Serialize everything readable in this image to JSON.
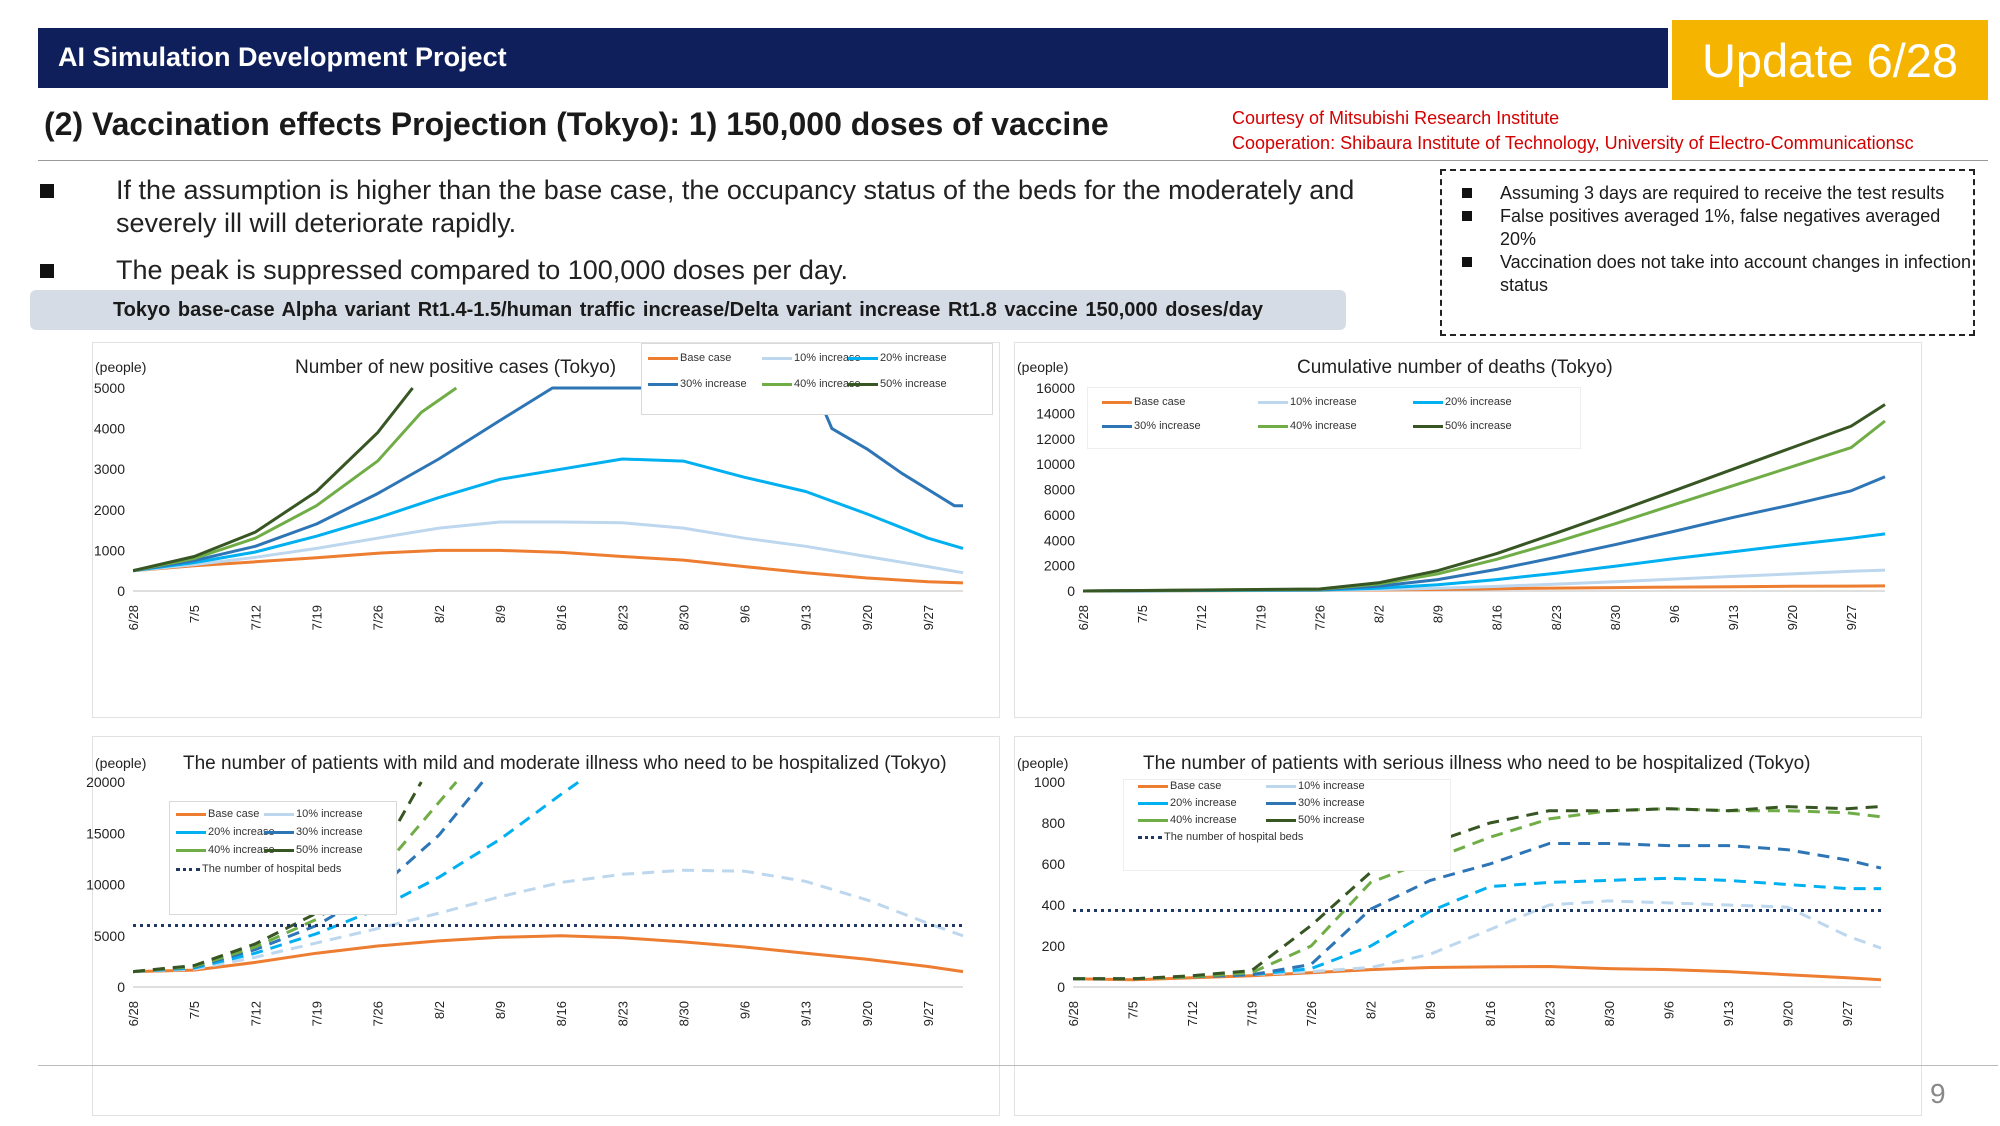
{
  "header": {
    "title": "AI Simulation Development Project",
    "badge": "Update 6/28"
  },
  "subtitle": "(2) Vaccination effects Projection (Tokyo): 1) 150,000 doses of vaccine",
  "credit": {
    "line1": "Courtesy of Mitsubishi Research Institute",
    "line2": "Cooperation: Shibaura Institute of Technology, University of Electro-Communicationsc"
  },
  "bullets": [
    "If the assumption is higher than the base case, the occupancy status of the beds for the moderately and severely ill will deteriorate rapidly.",
    "The peak is suppressed compared to 100,000 doses per day."
  ],
  "notes": [
    "Assuming 3 days are required to receive the test results",
    "False positives averaged 1%, false negatives averaged 20%",
    "Vaccination does not take into account changes in infection status"
  ],
  "scenario": "Tokyo base-case  Alpha variant Rt1.4-1.5/human traffic increase/Delta variant increase  Rt1.8 vaccine 150,000 doses/day",
  "page_number": "9",
  "colors": {
    "header": "#0f1f5c",
    "badge": "#f5b400",
    "credit": "#d40000",
    "base": "#ed7d31",
    "inc10": "#bdd7ee",
    "inc20": "#00b0f0",
    "inc30": "#2e75b6",
    "inc40": "#70ad47",
    "inc50": "#375623",
    "beds": "#1f3864"
  },
  "chart_data": [
    {
      "type": "line",
      "title": "Number of new positive cases (Tokyo)",
      "ylabel": "(people)",
      "ylim": [
        0,
        5000
      ],
      "yticks": [
        "0",
        "1000",
        "2000",
        "3000",
        "4000",
        "5000"
      ],
      "x_ticks": [
        "6/28",
        "7/5",
        "7/12",
        "7/19",
        "7/26",
        "8/2",
        "8/9",
        "8/16",
        "8/23",
        "8/30",
        "9/6",
        "9/13",
        "9/20",
        "9/27"
      ],
      "x_days": [
        0,
        7,
        14,
        21,
        28,
        35,
        42,
        49,
        56,
        63,
        70,
        77,
        84,
        91
      ],
      "legend": [
        "Base case",
        "10% increase",
        "20% increase",
        "30% increase",
        "40% increase",
        "50% increase"
      ],
      "series": [
        {
          "name": "Base case",
          "x": [
            0,
            7,
            14,
            21,
            28,
            35,
            42,
            49,
            56,
            63,
            70,
            77,
            84,
            91,
            95
          ],
          "values": [
            500,
            620,
            720,
            820,
            930,
            1000,
            1000,
            950,
            850,
            760,
            600,
            450,
            320,
            230,
            200
          ]
        },
        {
          "name": "10% increase",
          "x": [
            0,
            7,
            14,
            21,
            28,
            35,
            42,
            49,
            56,
            63,
            70,
            77,
            84,
            91,
            95
          ],
          "values": [
            500,
            650,
            830,
            1050,
            1300,
            1550,
            1700,
            1700,
            1680,
            1550,
            1300,
            1100,
            850,
            600,
            450
          ]
        },
        {
          "name": "20% increase",
          "x": [
            0,
            7,
            14,
            21,
            28,
            35,
            42,
            49,
            56,
            63,
            70,
            77,
            84,
            91,
            95
          ],
          "values": [
            500,
            700,
            960,
            1350,
            1800,
            2300,
            2750,
            3000,
            3250,
            3200,
            2800,
            2450,
            1900,
            1300,
            1050
          ]
        },
        {
          "name": "30% increase",
          "x": [
            0,
            7,
            14,
            21,
            28,
            35,
            42,
            48,
            78,
            80,
            84,
            88,
            91,
            94,
            95
          ],
          "values": [
            500,
            750,
            1100,
            1650,
            2400,
            3250,
            4200,
            5000,
            5000,
            4000,
            3500,
            2900,
            2500,
            2100,
            2100
          ]
        },
        {
          "name": "40% increase",
          "x": [
            0,
            7,
            14,
            21,
            28,
            33,
            37
          ],
          "values": [
            500,
            800,
            1300,
            2100,
            3200,
            4400,
            5000
          ]
        },
        {
          "name": "50% increase",
          "x": [
            0,
            7,
            14,
            21,
            28,
            32
          ],
          "values": [
            500,
            850,
            1450,
            2450,
            3900,
            5000
          ]
        }
      ]
    },
    {
      "type": "line",
      "title": "Cumulative number of deaths (Tokyo)",
      "ylabel": "(people)",
      "ylim": [
        0,
        16000
      ],
      "yticks": [
        "0",
        "2000",
        "4000",
        "6000",
        "8000",
        "10000",
        "12000",
        "14000",
        "16000"
      ],
      "x_ticks": [
        "6/28",
        "7/5",
        "7/12",
        "7/19",
        "7/26",
        "8/2",
        "8/9",
        "8/16",
        "8/23",
        "8/30",
        "9/6",
        "9/13",
        "9/20",
        "9/27"
      ],
      "x_days": [
        0,
        7,
        14,
        21,
        28,
        35,
        42,
        49,
        56,
        63,
        70,
        77,
        84,
        91
      ],
      "legend": [
        "Base case",
        "10% increase",
        "20% increase",
        "30% increase",
        "40% increase",
        "50% increase"
      ],
      "series": [
        {
          "name": "Base case",
          "x": [
            0,
            28,
            35,
            42,
            49,
            56,
            63,
            70,
            77,
            84,
            91,
            95
          ],
          "values": [
            0,
            50,
            80,
            120,
            180,
            230,
            270,
            310,
            340,
            370,
            390,
            400
          ]
        },
        {
          "name": "10% increase",
          "x": [
            0,
            28,
            35,
            42,
            49,
            56,
            63,
            70,
            77,
            84,
            91,
            95
          ],
          "values": [
            0,
            60,
            120,
            220,
            360,
            540,
            730,
            940,
            1150,
            1350,
            1550,
            1650
          ]
        },
        {
          "name": "20% increase",
          "x": [
            0,
            28,
            35,
            42,
            49,
            56,
            63,
            70,
            77,
            84,
            91,
            95
          ],
          "values": [
            0,
            80,
            220,
            500,
            900,
            1400,
            1950,
            2550,
            3100,
            3650,
            4150,
            4500
          ]
        },
        {
          "name": "30% increase",
          "x": [
            0,
            28,
            35,
            42,
            49,
            56,
            63,
            70,
            77,
            84,
            91,
            95
          ],
          "values": [
            0,
            110,
            380,
            900,
            1700,
            2650,
            3650,
            4700,
            5800,
            6800,
            7900,
            9000
          ]
        },
        {
          "name": "40% increase",
          "x": [
            0,
            28,
            35,
            42,
            49,
            56,
            63,
            70,
            77,
            84,
            91,
            95
          ],
          "values": [
            0,
            140,
            550,
            1350,
            2500,
            3850,
            5300,
            6800,
            8300,
            9800,
            11300,
            13400
          ]
        },
        {
          "name": "50% increase",
          "x": [
            0,
            28,
            35,
            42,
            49,
            56,
            63,
            70,
            77,
            84,
            91,
            95
          ],
          "values": [
            0,
            160,
            650,
            1600,
            2950,
            4550,
            6200,
            7900,
            9600,
            11300,
            13000,
            14700
          ]
        }
      ]
    },
    {
      "type": "line",
      "title": "The number of patients with mild and moderate illness who need to be hospitalized (Tokyo)",
      "ylabel": "(people)",
      "ylim": [
        0,
        20000
      ],
      "yticks": [
        "0",
        "5000",
        "10000",
        "15000",
        "20000"
      ],
      "x_ticks": [
        "6/28",
        "7/5",
        "7/12",
        "7/19",
        "7/26",
        "8/2",
        "8/9",
        "8/16",
        "8/23",
        "8/30",
        "9/6",
        "9/13",
        "9/20",
        "9/27"
      ],
      "x_days": [
        0,
        7,
        14,
        21,
        28,
        35,
        42,
        49,
        56,
        63,
        70,
        77,
        84,
        91
      ],
      "legend": [
        "Base case",
        "10% increase",
        "20% increase",
        "30% increase",
        "40% increase",
        "50% increase",
        "The number of hospital beds"
      ],
      "series": [
        {
          "name": "Base case",
          "x": [
            0,
            7,
            14,
            21,
            28,
            35,
            42,
            49,
            56,
            63,
            70,
            77,
            84,
            91,
            95
          ],
          "values": [
            1500,
            1650,
            2400,
            3300,
            4000,
            4500,
            4850,
            5000,
            4800,
            4400,
            3900,
            3300,
            2700,
            2000,
            1500
          ]
        },
        {
          "name": "10% increase",
          "x": [
            0,
            7,
            14,
            21,
            28,
            35,
            42,
            49,
            56,
            63,
            70,
            77,
            84,
            91,
            95
          ],
          "values": [
            1500,
            1750,
            2900,
            4300,
            5700,
            7200,
            8800,
            10200,
            11000,
            11400,
            11300,
            10300,
            8500,
            6200,
            5000
          ]
        },
        {
          "name": "20% increase",
          "x": [
            0,
            7,
            14,
            21,
            28,
            35,
            42,
            49,
            51
          ],
          "values": [
            1500,
            1850,
            3300,
            5200,
            7600,
            10700,
            14400,
            18800,
            20000
          ]
        },
        {
          "name": "30% increase",
          "x": [
            0,
            7,
            14,
            21,
            28,
            35,
            40
          ],
          "values": [
            1500,
            1950,
            3650,
            6000,
            9500,
            14800,
            20000
          ]
        },
        {
          "name": "40% increase",
          "x": [
            0,
            7,
            14,
            21,
            28,
            35,
            37
          ],
          "values": [
            1500,
            2000,
            3900,
            6600,
            11000,
            18000,
            20000
          ]
        },
        {
          "name": "50% increase",
          "x": [
            0,
            7,
            14,
            21,
            28,
            33
          ],
          "values": [
            1500,
            2100,
            4200,
            7200,
            12500,
            20000
          ]
        },
        {
          "name": "The number of hospital beds",
          "x": [
            0,
            95
          ],
          "values": [
            6000,
            6000
          ]
        }
      ]
    },
    {
      "type": "line",
      "title": "The number of patients with serious illness who need to be hospitalized (Tokyo)",
      "ylabel": "(people)",
      "ylim": [
        0,
        1000
      ],
      "yticks": [
        "0",
        "200",
        "400",
        "600",
        "800",
        "1000"
      ],
      "x_ticks": [
        "6/28",
        "7/5",
        "7/12",
        "7/19",
        "7/26",
        "8/2",
        "8/9",
        "8/16",
        "8/23",
        "8/30",
        "9/6",
        "9/13",
        "9/20",
        "9/27"
      ],
      "x_days": [
        0,
        7,
        14,
        21,
        28,
        35,
        42,
        49,
        56,
        63,
        70,
        77,
        84,
        91
      ],
      "legend": [
        "Base case",
        "10% increase",
        "20% increase",
        "30% increase",
        "40% increase",
        "50% increase",
        "The number of hospital beds"
      ],
      "series": [
        {
          "name": "Base case",
          "x": [
            0,
            7,
            14,
            21,
            28,
            35,
            42,
            49,
            56,
            63,
            70,
            77,
            84,
            91,
            95
          ],
          "values": [
            40,
            35,
            45,
            55,
            70,
            85,
            95,
            98,
            100,
            90,
            85,
            75,
            60,
            45,
            35
          ]
        },
        {
          "name": "10% increase",
          "x": [
            0,
            7,
            14,
            21,
            28,
            35,
            42,
            49,
            56,
            63,
            70,
            77,
            84,
            91,
            95
          ],
          "values": [
            40,
            40,
            50,
            60,
            75,
            95,
            160,
            280,
            400,
            420,
            410,
            400,
            390,
            250,
            190
          ]
        },
        {
          "name": "20% increase",
          "x": [
            0,
            7,
            14,
            21,
            28,
            35,
            42,
            49,
            56,
            63,
            70,
            77,
            84,
            91,
            95
          ],
          "values": [
            40,
            40,
            50,
            60,
            90,
            200,
            370,
            490,
            510,
            520,
            530,
            520,
            500,
            480,
            480
          ]
        },
        {
          "name": "30% increase",
          "x": [
            0,
            7,
            14,
            21,
            28,
            35,
            42,
            49,
            56,
            63,
            70,
            77,
            84,
            91,
            95
          ],
          "values": [
            40,
            40,
            50,
            60,
            110,
            380,
            520,
            600,
            700,
            700,
            690,
            690,
            670,
            620,
            580
          ]
        },
        {
          "name": "40% increase",
          "x": [
            0,
            7,
            14,
            21,
            28,
            35,
            42,
            49,
            56,
            63,
            70,
            77,
            84,
            91,
            95
          ],
          "values": [
            40,
            40,
            50,
            70,
            200,
            510,
            620,
            730,
            820,
            860,
            870,
            860,
            860,
            850,
            830
          ]
        },
        {
          "name": "50% increase",
          "x": [
            0,
            7,
            14,
            21,
            28,
            35,
            42,
            49,
            56,
            63,
            70,
            77,
            84,
            91,
            95
          ],
          "values": [
            40,
            40,
            55,
            80,
            300,
            560,
            700,
            800,
            860,
            860,
            870,
            860,
            880,
            870,
            880
          ]
        },
        {
          "name": "The number of hospital beds",
          "x": [
            0,
            95
          ],
          "values": [
            373,
            373
          ]
        }
      ]
    }
  ]
}
